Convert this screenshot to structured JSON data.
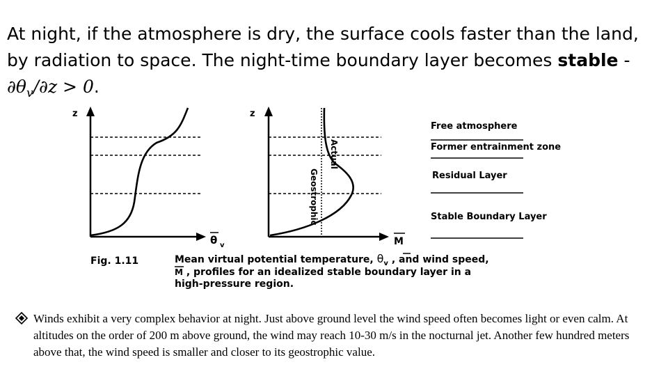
{
  "slide": {
    "heading_line1": "At night, if the atmosphere is dry, the surface cools faster than the land,",
    "heading_line2_pre": "by radiation to space.  The night-time boundary layer becomes ",
    "heading_line2_bold": "stable",
    "heading_line2_post": " -",
    "heading_math_main": "∂θ",
    "heading_math_sub": "v",
    "heading_math_rest": "/∂z > 0",
    "heading_math_end": "."
  },
  "figure": {
    "left_axis_y_label": "z",
    "left_axis_x_label": "θ",
    "left_axis_x_sub": "v",
    "right_axis_y_label": "z",
    "right_axis_x_label": "M",
    "curve_label_actual": "Actual",
    "curve_label_geostrophic": "Geostrophic",
    "layers": [
      "Free atmosphere",
      "Former entrainment zone",
      "Residual Layer",
      "Stable Boundary Layer"
    ],
    "caption_number": "Fig.  1.11",
    "caption_line1_pre": "Mean virtual potential temperature, ",
    "caption_theta": "θ",
    "caption_theta_sub": "v",
    "caption_line1_post": " , and wind speed,",
    "caption_line2_M": "M",
    "caption_line2_rest": " , profiles for an idealized stable boundary layer in a",
    "caption_line3": "high-pressure region."
  },
  "bullet": {
    "text": "Winds exhibit a very complex behavior at night. Just above ground level the wind speed often becomes light or even calm. At altitudes on the order of 200 m above ground, the wind may reach 10-30 m/s in the nocturnal jet. Another few hundred meters above that, the wind speed is smaller and closer to its geostrophic value."
  }
}
